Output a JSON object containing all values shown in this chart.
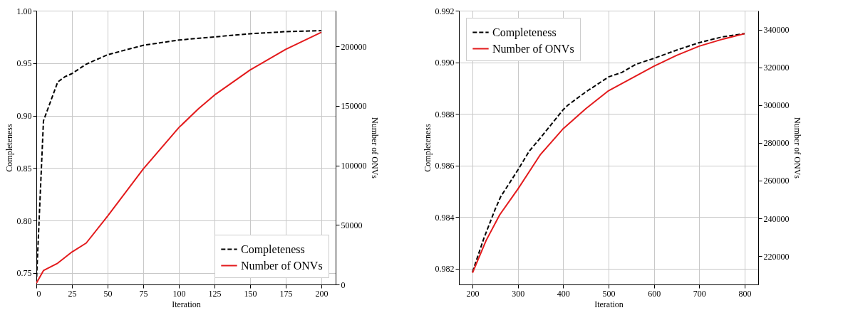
{
  "chart_data": [
    {
      "type": "line",
      "xlabel": "Iteration",
      "ylabel": "Completeness",
      "y2label": "Number of ONVs",
      "xlim": [
        0,
        210
      ],
      "xticks": [
        0,
        25,
        50,
        75,
        100,
        125,
        150,
        175,
        200
      ],
      "ylim": [
        0.739,
        1.0
      ],
      "yticks": [
        0.75,
        {
          "value": 0.8,
          "label": "0.80"
        },
        0.85,
        {
          "value": 0.9,
          "label": "0.90"
        },
        0.95,
        {
          "value": 1.0,
          "label": "1.00"
        }
      ],
      "y2lim": [
        0,
        230000
      ],
      "y2ticks": [
        0,
        50000,
        100000,
        150000,
        200000
      ],
      "grid": true,
      "legend": "bottom right",
      "series": [
        {
          "name": "Completeness",
          "color": "#000000",
          "line_style": "dashed",
          "x": [
            0,
            5,
            15,
            20,
            25,
            35,
            50,
            75,
            100,
            125,
            150,
            175,
            200
          ],
          "values": [
            0.74,
            0.895,
            0.932,
            0.937,
            0.94,
            0.949,
            0.958,
            0.967,
            0.972,
            0.975,
            0.978,
            0.98,
            0.981
          ]
        },
        {
          "name": "Number of ONVs",
          "color": "#e31a1c",
          "line_style": "solid",
          "axis": "y2",
          "x": [
            0,
            5,
            15,
            25,
            35,
            50,
            75,
            100,
            114,
            125,
            150,
            175,
            200
          ],
          "values": [
            1000,
            11700,
            17900,
            27300,
            34800,
            57400,
            97000,
            131800,
            147800,
            159100,
            180200,
            197500,
            211800
          ]
        }
      ]
    },
    {
      "type": "line",
      "xlabel": "Iteration",
      "ylabel": "Completeness",
      "y2label": "Number of ONVs",
      "xlim": [
        170,
        830
      ],
      "xticks": [
        200,
        300,
        400,
        500,
        600,
        700,
        800
      ],
      "ylim": [
        0.98138,
        0.992
      ],
      "yticks": [
        0.982,
        0.984,
        0.986,
        0.988,
        {
          "value": 0.99,
          "label": "0.990"
        },
        0.992
      ],
      "y2lim": [
        205000,
        350000
      ],
      "y2ticks": [
        220000,
        240000,
        260000,
        280000,
        300000,
        320000,
        340000
      ],
      "grid": true,
      "legend": "top left",
      "series": [
        {
          "name": "Completeness",
          "color": "#000000",
          "line_style": "dashed",
          "x": [
            200,
            225,
            250,
            262,
            300,
            325,
            350,
            400,
            410,
            450,
            500,
            530,
            560,
            600,
            650,
            700,
            750,
            800
          ],
          "values": [
            0.98187,
            0.98317,
            0.9843,
            0.98478,
            0.98582,
            0.98655,
            0.98707,
            0.98816,
            0.98833,
            0.98885,
            0.98943,
            0.98961,
            0.98992,
            0.99015,
            0.99047,
            0.99076,
            0.99098,
            0.99111
          ]
        },
        {
          "name": "Number of ONVs",
          "color": "#e31a1c",
          "line_style": "solid",
          "axis": "y2",
          "x": [
            200,
            230,
            260,
            300,
            350,
            400,
            450,
            500,
            550,
            600,
            650,
            700,
            750,
            800
          ],
          "values": [
            211200,
            228300,
            241900,
            255500,
            273900,
            287500,
            298100,
            307600,
            314100,
            320600,
            326300,
            331200,
            334800,
            337800
          ]
        }
      ]
    }
  ]
}
